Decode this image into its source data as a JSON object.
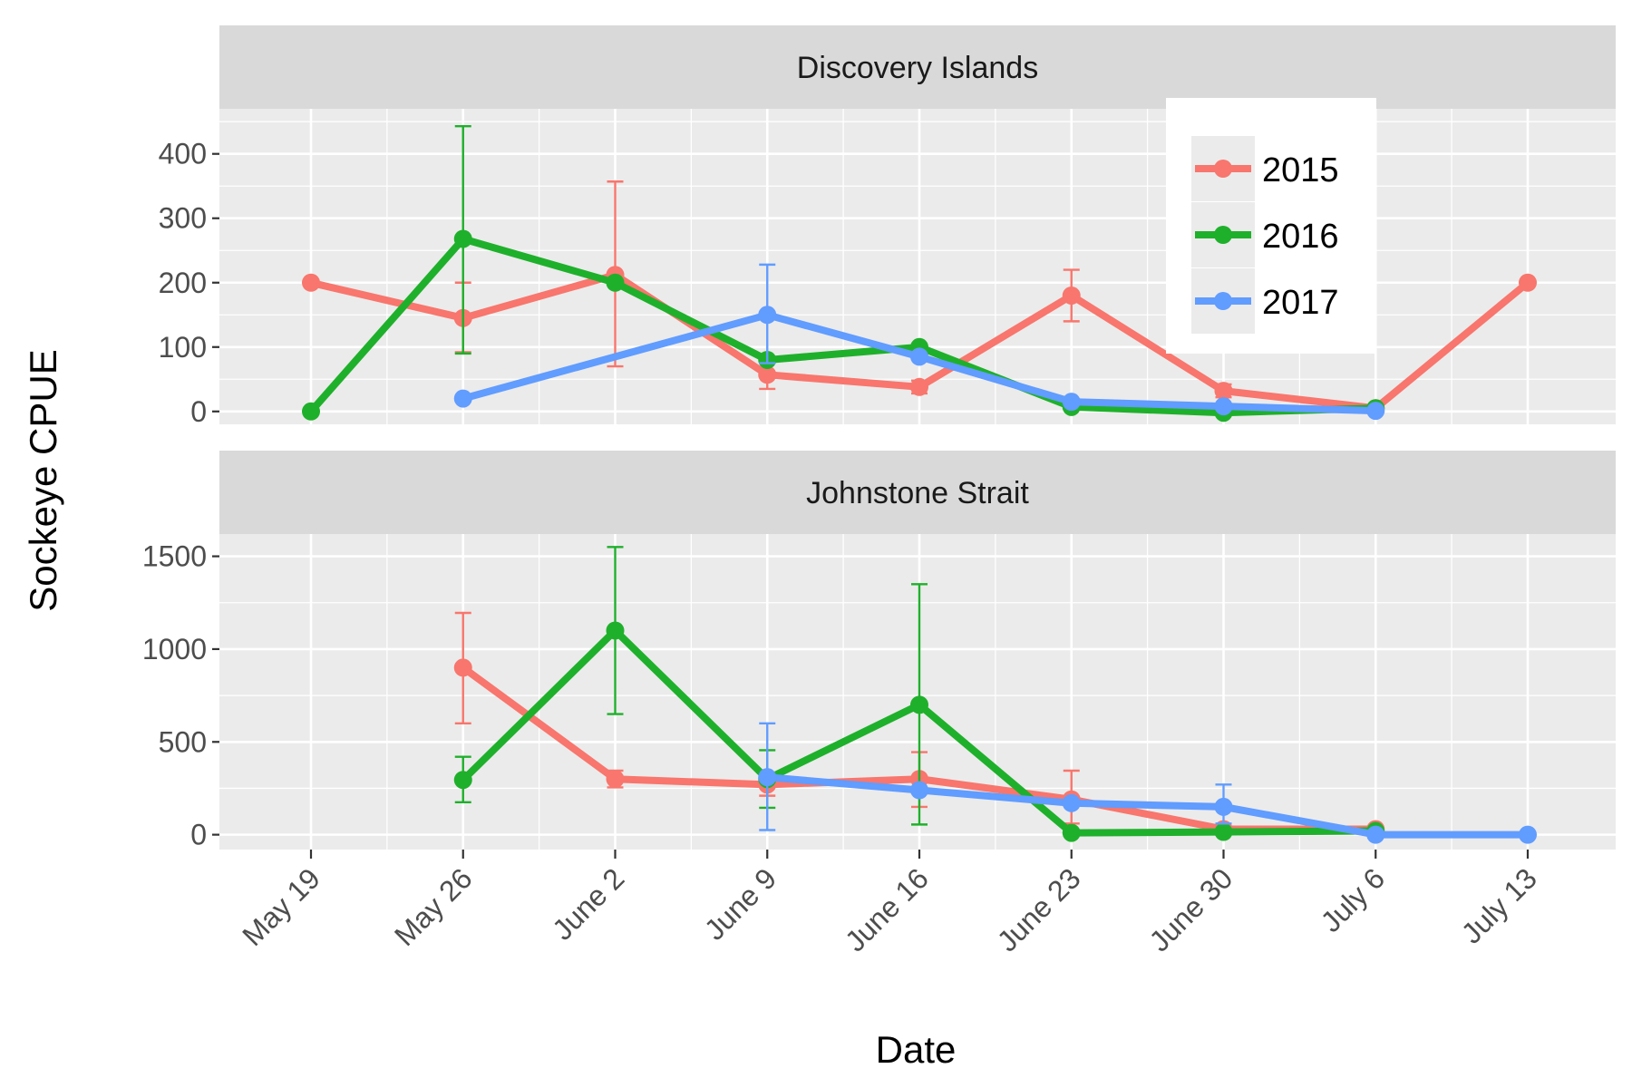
{
  "chart_data": {
    "type": "line",
    "xlabel": "Date",
    "ylabel": "Sockeye CPUE",
    "x_ticks": [
      "May 19",
      "May 26",
      "June 2",
      "June 9",
      "June 16",
      "June 23",
      "June 30",
      "July 6",
      "July 13"
    ],
    "legend": {
      "position": "top-right",
      "entries": [
        {
          "name": "2015",
          "color": "#F8766D"
        },
        {
          "name": "2016",
          "color": "#1FB02B"
        },
        {
          "name": "2017",
          "color": "#619CFF"
        }
      ]
    },
    "panels": [
      {
        "title": "Discovery Islands",
        "ylim": [
          -20,
          470
        ],
        "yticks": [
          0,
          100,
          200,
          300,
          400
        ],
        "series": [
          {
            "name": "2015",
            "color": "#F8766D",
            "points": [
              {
                "x": "May 19",
                "y": 200
              },
              {
                "x": "May 26",
                "y": 145,
                "lo": 92,
                "hi": 200
              },
              {
                "x": "June 2",
                "y": 212,
                "lo": 70,
                "hi": 357
              },
              {
                "x": "June 9",
                "y": 57,
                "lo": 35,
                "hi": 80
              },
              {
                "x": "June 16",
                "y": 38,
                "lo": 28,
                "hi": 48
              },
              {
                "x": "June 23",
                "y": 180,
                "lo": 140,
                "hi": 220
              },
              {
                "x": "June 30",
                "y": 32,
                "lo": 22,
                "hi": 42
              },
              {
                "x": "July 6",
                "y": 5
              },
              {
                "x": "July 13",
                "y": 200
              }
            ]
          },
          {
            "name": "2016",
            "color": "#1FB02B",
            "points": [
              {
                "x": "May 19",
                "y": 0
              },
              {
                "x": "May 26",
                "y": 268,
                "lo": 90,
                "hi": 443
              },
              {
                "x": "June 2",
                "y": 200
              },
              {
                "x": "June 9",
                "y": 80
              },
              {
                "x": "June 16",
                "y": 100
              },
              {
                "x": "June 23",
                "y": 7
              },
              {
                "x": "June 30",
                "y": -2
              },
              {
                "x": "July 6",
                "y": 5
              }
            ]
          },
          {
            "name": "2017",
            "color": "#619CFF",
            "points": [
              {
                "x": "May 26",
                "y": 20
              },
              {
                "x": "June 9",
                "y": 150,
                "lo": 75,
                "hi": 228
              },
              {
                "x": "June 16",
                "y": 85
              },
              {
                "x": "June 23",
                "y": 15
              },
              {
                "x": "June 30",
                "y": 8
              },
              {
                "x": "July 6",
                "y": 1
              }
            ]
          }
        ]
      },
      {
        "title": "Johnstone Strait",
        "ylim": [
          -80,
          1620
        ],
        "yticks": [
          0,
          500,
          1000,
          1500
        ],
        "series": [
          {
            "name": "2015",
            "color": "#F8766D",
            "points": [
              {
                "x": "May 26",
                "y": 900,
                "lo": 600,
                "hi": 1195
              },
              {
                "x": "June 2",
                "y": 300,
                "lo": 255,
                "hi": 345
              },
              {
                "x": "June 9",
                "y": 270,
                "lo": 210,
                "hi": 330
              },
              {
                "x": "June 16",
                "y": 300,
                "lo": 150,
                "hi": 445
              },
              {
                "x": "June 23",
                "y": 190,
                "lo": 60,
                "hi": 345
              },
              {
                "x": "June 30",
                "y": 30
              },
              {
                "x": "July 6",
                "y": 30
              }
            ]
          },
          {
            "name": "2016",
            "color": "#1FB02B",
            "points": [
              {
                "x": "May 26",
                "y": 295,
                "lo": 175,
                "hi": 420
              },
              {
                "x": "June 2",
                "y": 1100,
                "lo": 650,
                "hi": 1550
              },
              {
                "x": "June 9",
                "y": 300,
                "lo": 145,
                "hi": 455
              },
              {
                "x": "June 16",
                "y": 700,
                "lo": 55,
                "hi": 1350
              },
              {
                "x": "June 23",
                "y": 10
              },
              {
                "x": "June 30",
                "y": 15
              },
              {
                "x": "July 6",
                "y": 20
              }
            ]
          },
          {
            "name": "2017",
            "color": "#619CFF",
            "points": [
              {
                "x": "June 9",
                "y": 310,
                "lo": 25,
                "hi": 600
              },
              {
                "x": "June 16",
                "y": 240
              },
              {
                "x": "June 23",
                "y": 170
              },
              {
                "x": "June 30",
                "y": 150,
                "lo": 60,
                "hi": 270
              },
              {
                "x": "July 6",
                "y": 0
              },
              {
                "x": "July 13",
                "y": 0
              }
            ]
          }
        ]
      }
    ]
  }
}
